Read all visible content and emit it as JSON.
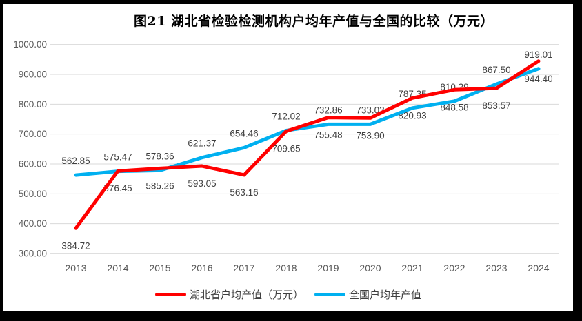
{
  "frame": {
    "border_color": "#000000",
    "background": "#ffffff"
  },
  "chart_data": {
    "type": "line",
    "title": "图21 湖北省检验检测机构户均年产值与全国的比较（万元）",
    "categories": [
      "2013",
      "2014",
      "2015",
      "2016",
      "2017",
      "2018",
      "2019",
      "2020",
      "2021",
      "2022",
      "2023",
      "2024"
    ],
    "series": [
      {
        "id": "hubei",
        "name": "湖北省户均产值（万元）",
        "color": "#ff0000",
        "label_position": "below",
        "values": [
          384.72,
          576.45,
          585.26,
          593.05,
          563.16,
          709.65,
          755.48,
          753.9,
          820.93,
          848.58,
          853.57,
          944.4
        ]
      },
      {
        "id": "national",
        "name": "全国户均年产值",
        "color": "#00b0f0",
        "label_position": "above",
        "values": [
          562.85,
          575.47,
          578.36,
          621.37,
          654.46,
          712.02,
          732.86,
          733.03,
          787.35,
          810.29,
          867.5,
          919.01
        ]
      }
    ],
    "ylim": [
      300,
      1000
    ],
    "ytick_step": 100,
    "ytick_labels": [
      "300.00",
      "400.00",
      "500.00",
      "600.00",
      "700.00",
      "800.00",
      "900.00",
      "1000.00"
    ],
    "value_decimals": 2,
    "grid": true,
    "legend_position": "bottom",
    "colors": {
      "gridline": "#d9d9d9",
      "axis_line": "#bfbfbf",
      "tick_label": "#595959",
      "data_label": "#404040",
      "title": "#000000"
    }
  }
}
